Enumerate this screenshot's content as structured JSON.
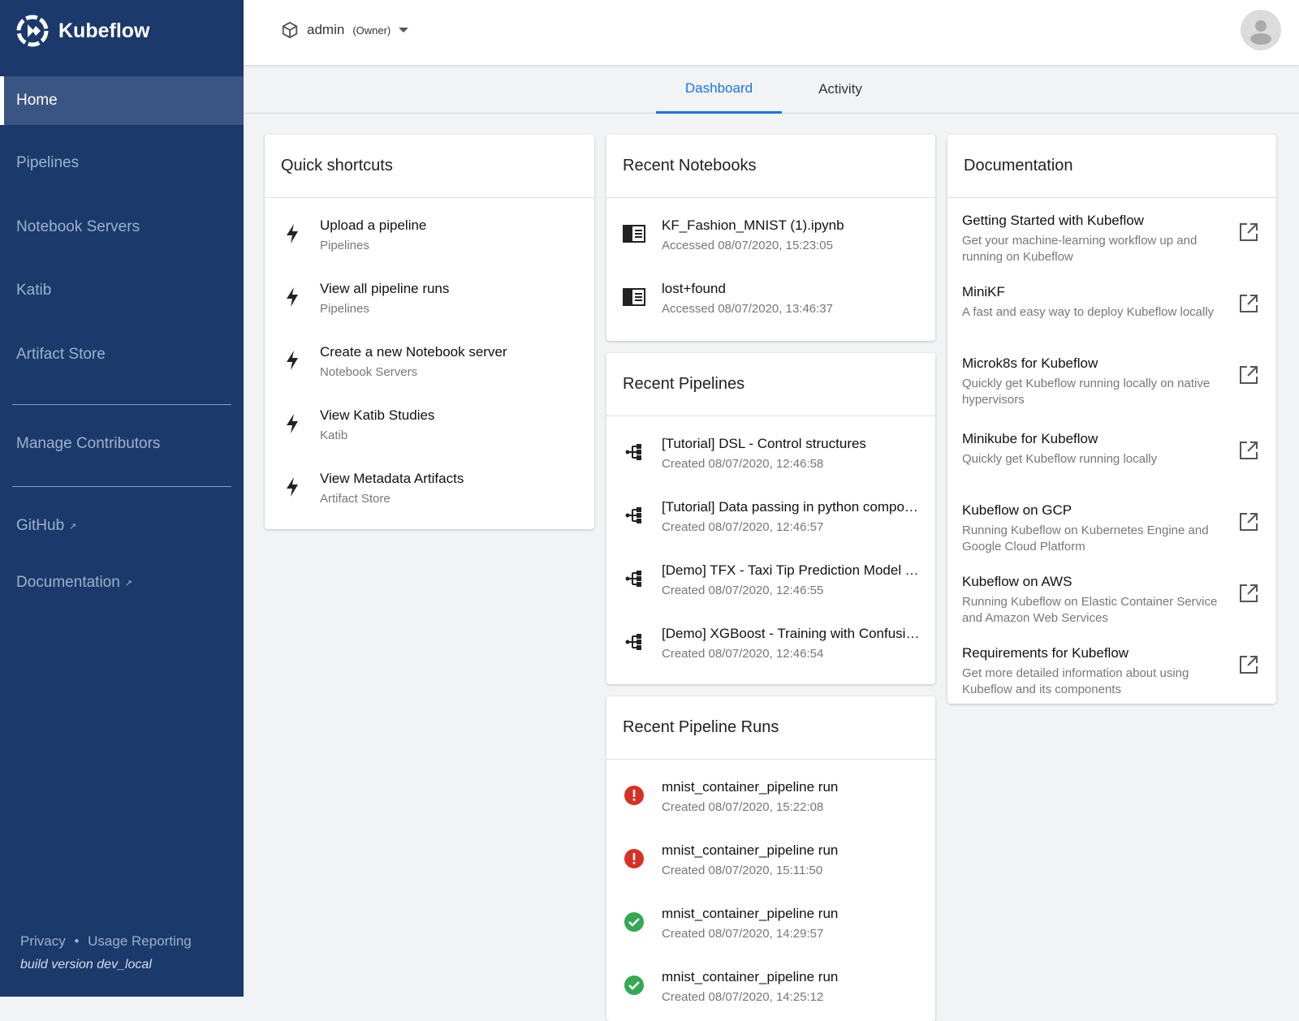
{
  "app": {
    "name": "Kubeflow"
  },
  "sidebar": {
    "items": [
      {
        "label": "Home",
        "active": true
      },
      {
        "label": "Pipelines"
      },
      {
        "label": "Notebook Servers"
      },
      {
        "label": "Katib"
      },
      {
        "label": "Artifact Store"
      }
    ],
    "manage": "Manage Contributors",
    "links": [
      {
        "label": "GitHub"
      },
      {
        "label": "Documentation"
      }
    ],
    "footer": {
      "privacy": "Privacy",
      "sep": "•",
      "usage": "Usage Reporting",
      "build": "build version dev_local"
    }
  },
  "header": {
    "namespace": "admin",
    "role": "(Owner)"
  },
  "tabs": [
    {
      "label": "Dashboard",
      "active": true
    },
    {
      "label": "Activity"
    }
  ],
  "quick": {
    "title": "Quick shortcuts",
    "items": [
      {
        "title": "Upload a pipeline",
        "sub": "Pipelines"
      },
      {
        "title": "View all pipeline runs",
        "sub": "Pipelines"
      },
      {
        "title": "Create a new Notebook server",
        "sub": "Notebook Servers"
      },
      {
        "title": "View Katib Studies",
        "sub": "Katib"
      },
      {
        "title": "View Metadata Artifacts",
        "sub": "Artifact Store"
      }
    ]
  },
  "notebooks": {
    "title": "Recent Notebooks",
    "items": [
      {
        "title": "KF_Fashion_MNIST (1).ipynb",
        "sub": "Accessed 08/07/2020, 15:23:05"
      },
      {
        "title": "lost+found",
        "sub": "Accessed 08/07/2020, 13:46:37"
      }
    ]
  },
  "pipelines": {
    "title": "Recent Pipelines",
    "items": [
      {
        "title": "[Tutorial] DSL - Control structures",
        "sub": "Created 08/07/2020, 12:46:58"
      },
      {
        "title": "[Tutorial] Data passing in python components",
        "sub": "Created 08/07/2020, 12:46:57"
      },
      {
        "title": "[Demo] TFX - Taxi Tip Prediction Model Trainer",
        "sub": "Created 08/07/2020, 12:46:55"
      },
      {
        "title": "[Demo] XGBoost - Training with Confusion Matrix",
        "sub": "Created 08/07/2020, 12:46:54"
      }
    ]
  },
  "runs": {
    "title": "Recent Pipeline Runs",
    "items": [
      {
        "title": "mnist_container_pipeline run",
        "sub": "Created 08/07/2020, 15:22:08",
        "status": "error"
      },
      {
        "title": "mnist_container_pipeline run",
        "sub": "Created 08/07/2020, 15:11:50",
        "status": "error"
      },
      {
        "title": "mnist_container_pipeline run",
        "sub": "Created 08/07/2020, 14:29:57",
        "status": "success"
      },
      {
        "title": "mnist_container_pipeline run",
        "sub": "Created 08/07/2020, 14:25:12",
        "status": "success"
      }
    ]
  },
  "docs": {
    "title": "Documentation",
    "items": [
      {
        "title": "Getting Started with Kubeflow",
        "sub": "Get your machine-learning workflow up and running on Kubeflow"
      },
      {
        "title": "MiniKF",
        "sub": "A fast and easy way to deploy Kubeflow locally"
      },
      {
        "title": "Microk8s for Kubeflow",
        "sub": "Quickly get Kubeflow running locally on native hypervisors"
      },
      {
        "title": "Minikube for Kubeflow",
        "sub": "Quickly get Kubeflow running locally"
      },
      {
        "title": "Kubeflow on GCP",
        "sub": "Running Kubeflow on Kubernetes Engine and Google Cloud Platform"
      },
      {
        "title": "Kubeflow on AWS",
        "sub": "Running Kubeflow on Elastic Container Service and Amazon Web Services"
      },
      {
        "title": "Requirements for Kubeflow",
        "sub": "Get more detailed information about using Kubeflow and its components"
      }
    ]
  },
  "colors": {
    "sidebar": "#1b3a6b",
    "accent": "#1a73e8",
    "error": "#d93025",
    "success": "#34a853"
  }
}
